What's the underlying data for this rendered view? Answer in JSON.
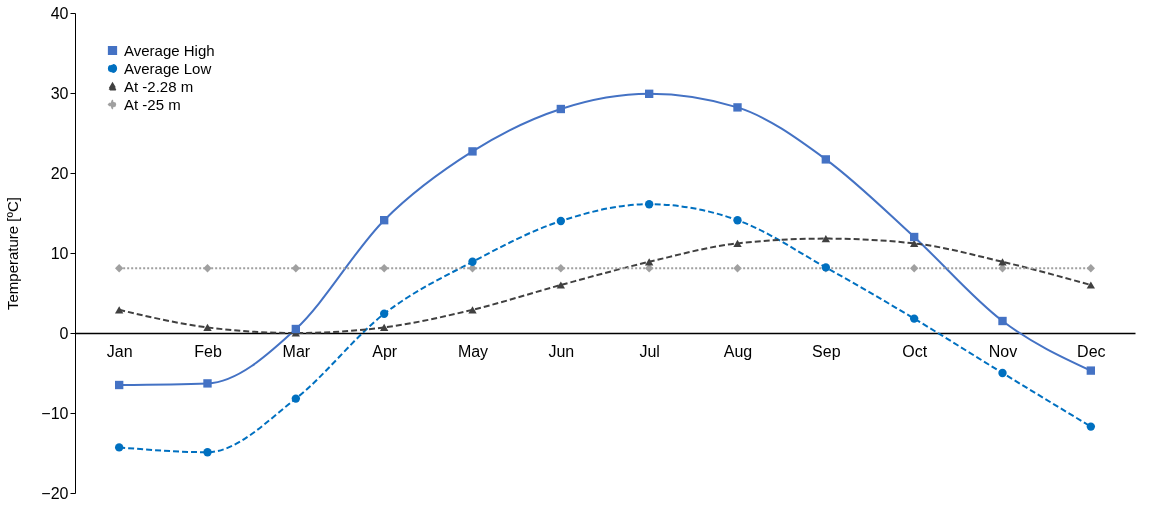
{
  "chart_data": {
    "type": "line",
    "ylabel": "Temperature [ºC]",
    "categories": [
      "Jan",
      "Feb",
      "Mar",
      "Apr",
      "May",
      "Jun",
      "Jul",
      "Aug",
      "Sep",
      "Oct",
      "Nov",
      "Dec"
    ],
    "series": [
      {
        "name": "Average High",
        "color": "#4472c4",
        "marker": "square",
        "line_style": "solid",
        "values": [
          -6.5,
          -6.3,
          0.5,
          14.1,
          22.7,
          28.0,
          29.9,
          28.2,
          21.7,
          12.0,
          1.5,
          -4.7
        ]
      },
      {
        "name": "Average Low",
        "color": "#0070c0",
        "marker": "circle",
        "line_style": "dashed",
        "values": [
          -14.3,
          -14.9,
          -8.2,
          2.4,
          8.9,
          14.0,
          16.1,
          14.1,
          8.2,
          1.8,
          -5.0,
          -11.7
        ]
      },
      {
        "name": "At -2.28 m",
        "color": "#404040",
        "marker": "triangle",
        "line_style": "dashed",
        "values": [
          2.9,
          0.7,
          0.0,
          0.7,
          2.9,
          6.0,
          8.9,
          11.2,
          11.8,
          11.2,
          8.9,
          6.0
        ]
      },
      {
        "name": "At -25 m",
        "color": "#a0a0a0",
        "marker": "diamond",
        "line_style": "dotted",
        "values": [
          8.1,
          8.1,
          8.1,
          8.1,
          8.1,
          8.1,
          8.1,
          8.1,
          8.1,
          8.1,
          8.1,
          8.1
        ]
      }
    ],
    "ylim": [
      -20,
      40
    ],
    "yticks": [
      -20,
      -10,
      0,
      10,
      20,
      30,
      40
    ],
    "grid": false,
    "legend": "top left"
  }
}
